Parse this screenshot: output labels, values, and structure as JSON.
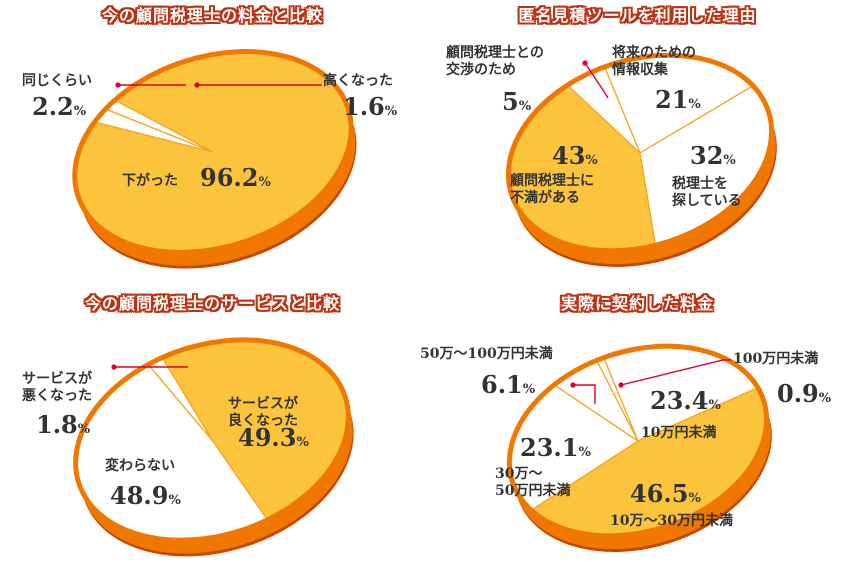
{
  "chart_data": [
    {
      "type": "pie",
      "title": "今の顧問税理士の料金と比較",
      "slices": [
        {
          "name": "下がった",
          "value": 96.2,
          "label": "96.2",
          "color": "#fcc43c"
        },
        {
          "name": "同じくらい",
          "value": 2.2,
          "label": "2.2",
          "color": "#ffffff"
        },
        {
          "name": "高くなった",
          "value": 1.6,
          "label": "1.6",
          "color": "#ffffff"
        }
      ]
    },
    {
      "type": "pie",
      "title": "匿名見積ツールを利用した理由",
      "slices": [
        {
          "name": "将来のための\n情報収集",
          "value": 21,
          "label": "21",
          "color": "#ffffff"
        },
        {
          "name": "税理士を\n探している",
          "value": 32,
          "label": "32",
          "color": "#ffffff"
        },
        {
          "name": "顧問税理士に\n不満がある",
          "value": 43,
          "label": "43",
          "color": "#fcc43c"
        },
        {
          "name": "顧問税理士との\n交渉のため",
          "value": 5,
          "label": "5",
          "color": "#ffffff"
        }
      ]
    },
    {
      "type": "pie",
      "title": "今の顧問税理士のサービスと比較",
      "slices": [
        {
          "name": "サービスが\n良くなった",
          "value": 49.3,
          "label": "49.3",
          "color": "#fcc43c"
        },
        {
          "name": "変わらない",
          "value": 48.9,
          "label": "48.9",
          "color": "#ffffff"
        },
        {
          "name": "サービスが\n悪くなった",
          "value": 1.8,
          "label": "1.8",
          "color": "#ffffff"
        }
      ]
    },
    {
      "type": "pie",
      "title": "実際に契約した料金",
      "slices": [
        {
          "name": "10万円未満",
          "value": 23.4,
          "label": "23.4",
          "color": "#ffffff"
        },
        {
          "name": "10万～30万円未満",
          "value": 46.5,
          "label": "46.5",
          "color": "#fcc43c"
        },
        {
          "name": "30万～\n50万円未満",
          "value": 23.1,
          "label": "23.1",
          "color": "#ffffff"
        },
        {
          "name": "50万～100万円未満",
          "value": 6.1,
          "label": "6.1",
          "color": "#ffffff"
        },
        {
          "name": "100万円未満",
          "value": 0.9,
          "label": "0.9",
          "color": "#ffffff"
        }
      ]
    }
  ],
  "percent_sign": "%",
  "colors": {
    "rim": "#f07800",
    "rim_dark": "#c84800",
    "highlight": "#fcc43c",
    "divider": "#f5a623",
    "leader": "#e0002a"
  }
}
